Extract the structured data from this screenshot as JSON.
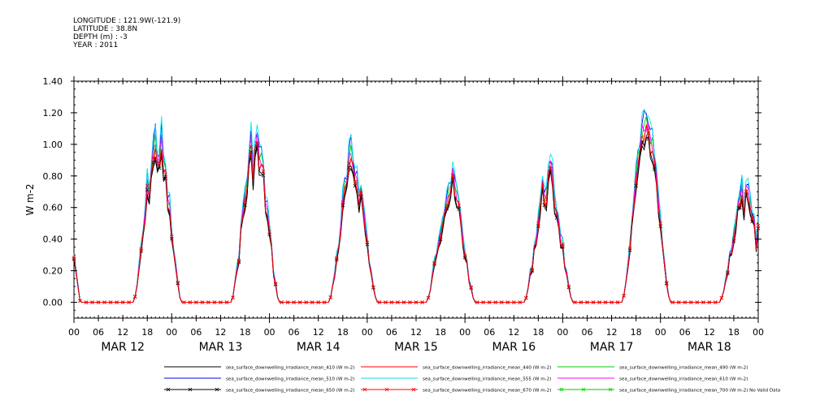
{
  "header": {
    "longitude": "LONGITUDE : 121.9W(-121.9)",
    "latitude": "LATITUDE : 38.8N",
    "depth": "DEPTH (m) : -3",
    "year": "YEAR : 2011"
  },
  "chart_data": {
    "type": "line",
    "title": "",
    "ylabel": "W m-2",
    "xlabel": "",
    "ylim": [
      -0.1,
      1.4
    ],
    "xlim_hours": [
      0,
      168
    ],
    "y_ticks": [
      "0.00",
      "0.20",
      "0.40",
      "0.60",
      "0.80",
      "1.00",
      "1.20",
      "1.40"
    ],
    "x_hour_ticks": [
      "00",
      "06",
      "12",
      "18",
      "00",
      "06",
      "12",
      "18",
      "00",
      "06",
      "12",
      "18",
      "00",
      "06",
      "12",
      "18",
      "00",
      "06",
      "12",
      "18",
      "00",
      "06",
      "12",
      "18",
      "00",
      "06",
      "12",
      "18",
      "00"
    ],
    "day_labels": [
      "MAR 12",
      "MAR 13",
      "MAR 14",
      "MAR 15",
      "MAR 16",
      "MAR 17",
      "MAR 18"
    ],
    "daily_peaks": {
      "note_units": "approximate peak value per day for 510 nm series",
      "values": [
        1.2,
        1.2,
        1.05,
        0.9,
        0.95,
        1.22,
        0.8
      ]
    },
    "series": [
      {
        "name": "sea_surface_downwelling_irradiance_mean_410 (W m-2)",
        "color": "#000000",
        "marker": "",
        "scale": 0.86
      },
      {
        "name": "sea_surface_downwelling_irradiance_mean_440 (W m-2)",
        "color": "#ff0000",
        "marker": "",
        "scale": 0.9
      },
      {
        "name": "sea_surface_downwelling_irradiance_mean_490 (W m-2)",
        "color": "#00cc00",
        "marker": "",
        "scale": 0.95
      },
      {
        "name": "sea_surface_downwelling_irradiance_mean_510 (W m-2)",
        "color": "#0000ff",
        "marker": "",
        "scale": 1.0
      },
      {
        "name": "sea_surface_downwelling_irradiance_mean_555 (W m-2)",
        "color": "#00e5ee",
        "marker": "",
        "scale": 1.02
      },
      {
        "name": "sea_surface_downwelling_irradiance_mean_610 (W m-2)",
        "color": "#ff00ff",
        "marker": "",
        "scale": 0.94
      },
      {
        "name": "sea_surface_downwelling_irradiance_mean_650 (W m-2)",
        "color": "#000000",
        "marker": "x",
        "scale": 0.88
      },
      {
        "name": "sea_surface_downwelling_irradiance_mean_670 (W m-2)",
        "color": "#ff0000",
        "marker": "x",
        "scale": 0.91
      },
      {
        "name": "sea_surface_downwelling_irradiance_mean_700 (W m-2) No Valid Data",
        "color": "#00cc00",
        "marker": "x",
        "scale": 0
      }
    ]
  }
}
